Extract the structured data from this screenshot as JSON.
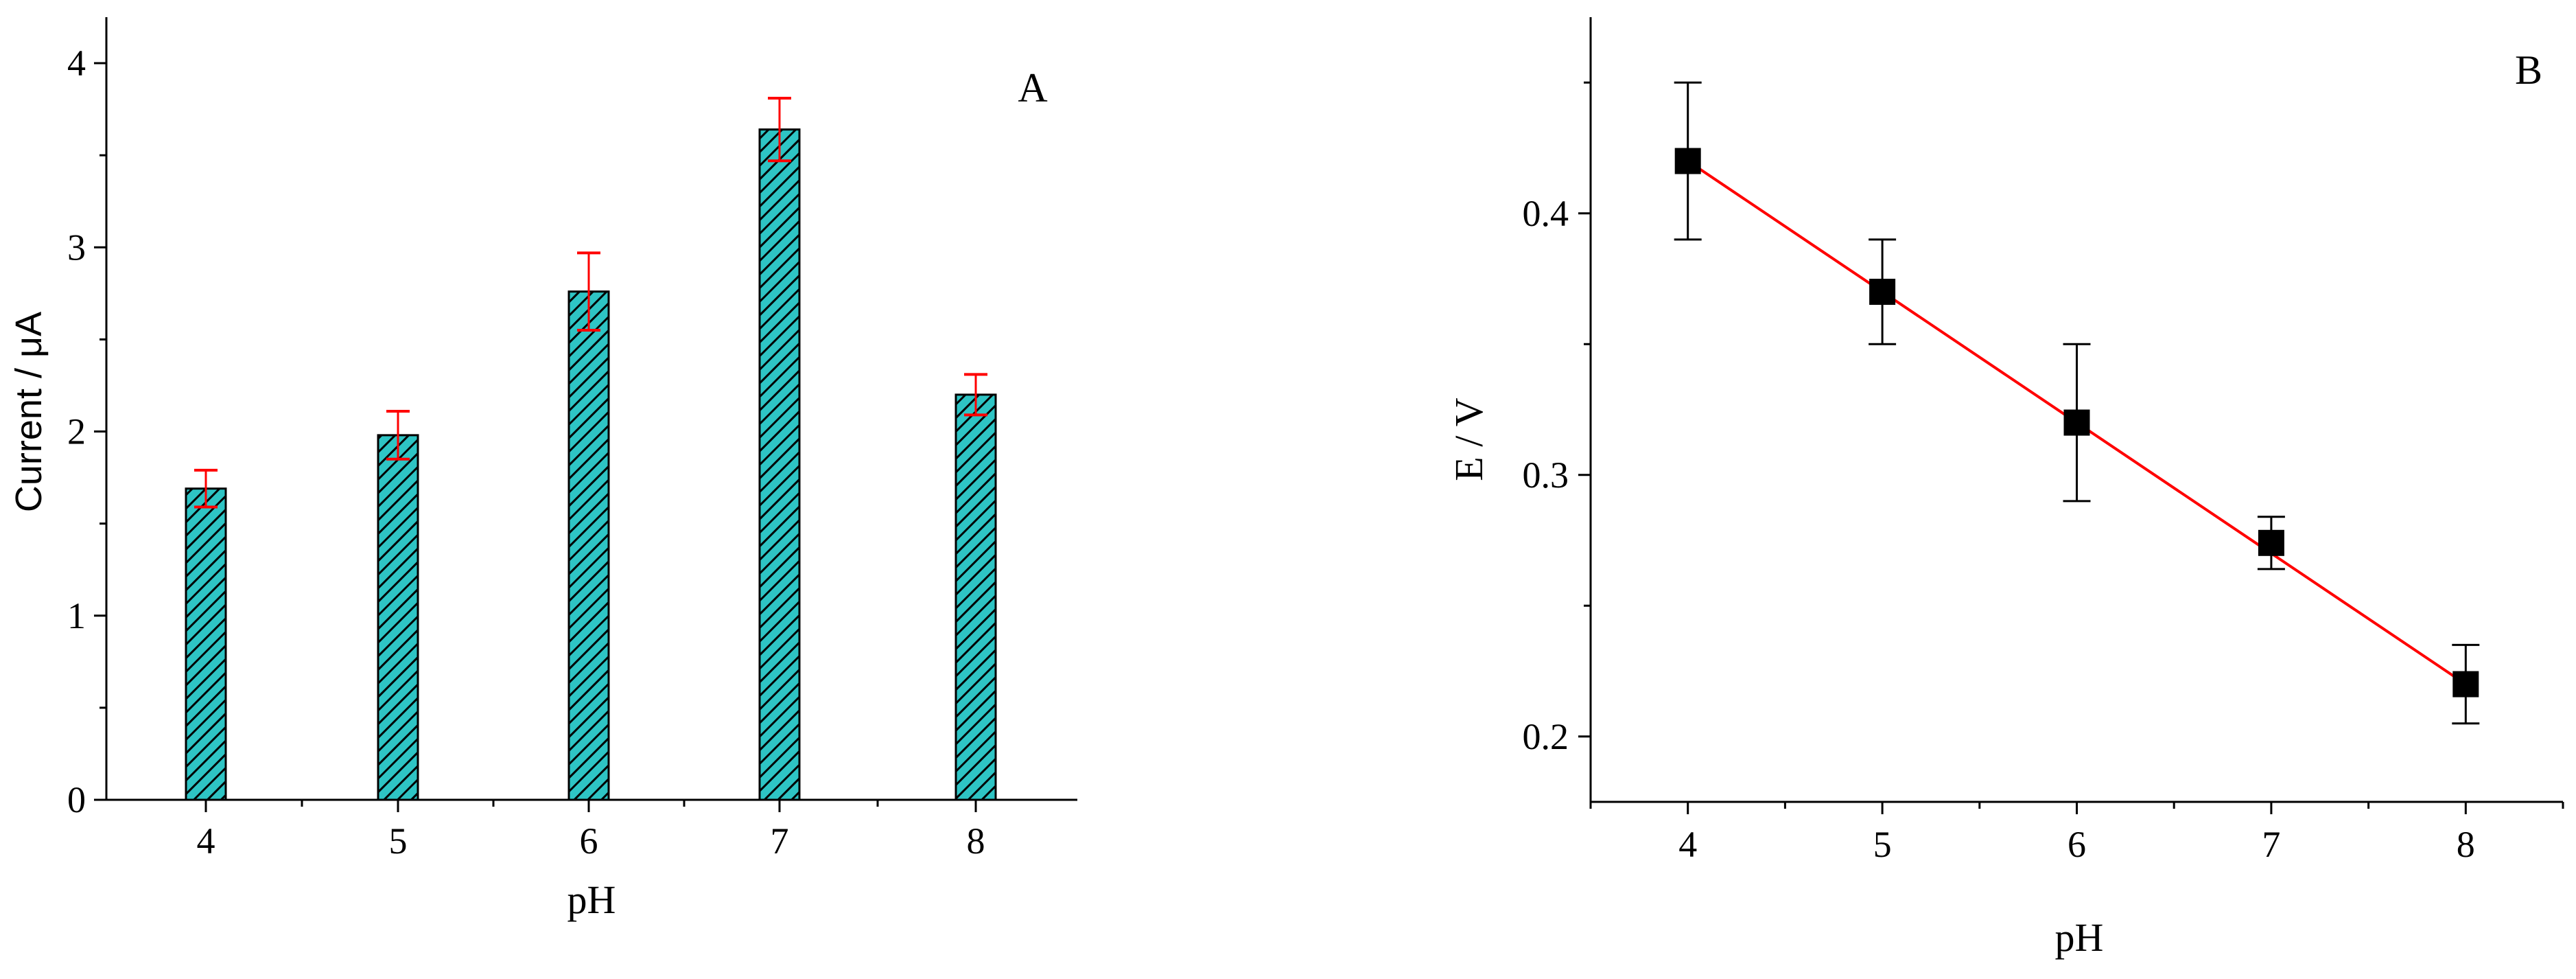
{
  "chart_data": [
    {
      "type": "bar",
      "panel_label": "A",
      "categories": [
        "4",
        "5",
        "6",
        "7",
        "8"
      ],
      "values": [
        1.69,
        1.98,
        2.76,
        3.64,
        2.2
      ],
      "errors": [
        0.1,
        0.13,
        0.21,
        0.17,
        0.11
      ],
      "xlabel": "pH",
      "ylabel": "Current / μA",
      "ylim": [
        0,
        4.25
      ],
      "yticks": [
        "0",
        "1",
        "2",
        "3",
        "4"
      ],
      "bar_fill": "#2ec4c4",
      "hatch_color": "#000000",
      "error_color": "#ff0000",
      "grid": false
    },
    {
      "type": "scatter",
      "panel_label": "B",
      "x": [
        4,
        5,
        6,
        7,
        8
      ],
      "y": [
        0.42,
        0.37,
        0.32,
        0.274,
        0.22
      ],
      "errors": [
        0.03,
        0.02,
        0.03,
        0.01,
        0.015
      ],
      "fit_line": {
        "x": [
          4,
          8
        ],
        "y": [
          0.42,
          0.22
        ],
        "color": "#ff0000"
      },
      "xlabel": "pH",
      "ylabel": "E / V",
      "xlim": [
        3.5,
        8.5
      ],
      "ylim": [
        0.175,
        0.475
      ],
      "xticks": [
        "4",
        "5",
        "6",
        "7",
        "8"
      ],
      "yticks": [
        "0.2",
        "0.3",
        "0.4"
      ],
      "marker": "square",
      "marker_color": "#000000",
      "grid": false
    }
  ]
}
